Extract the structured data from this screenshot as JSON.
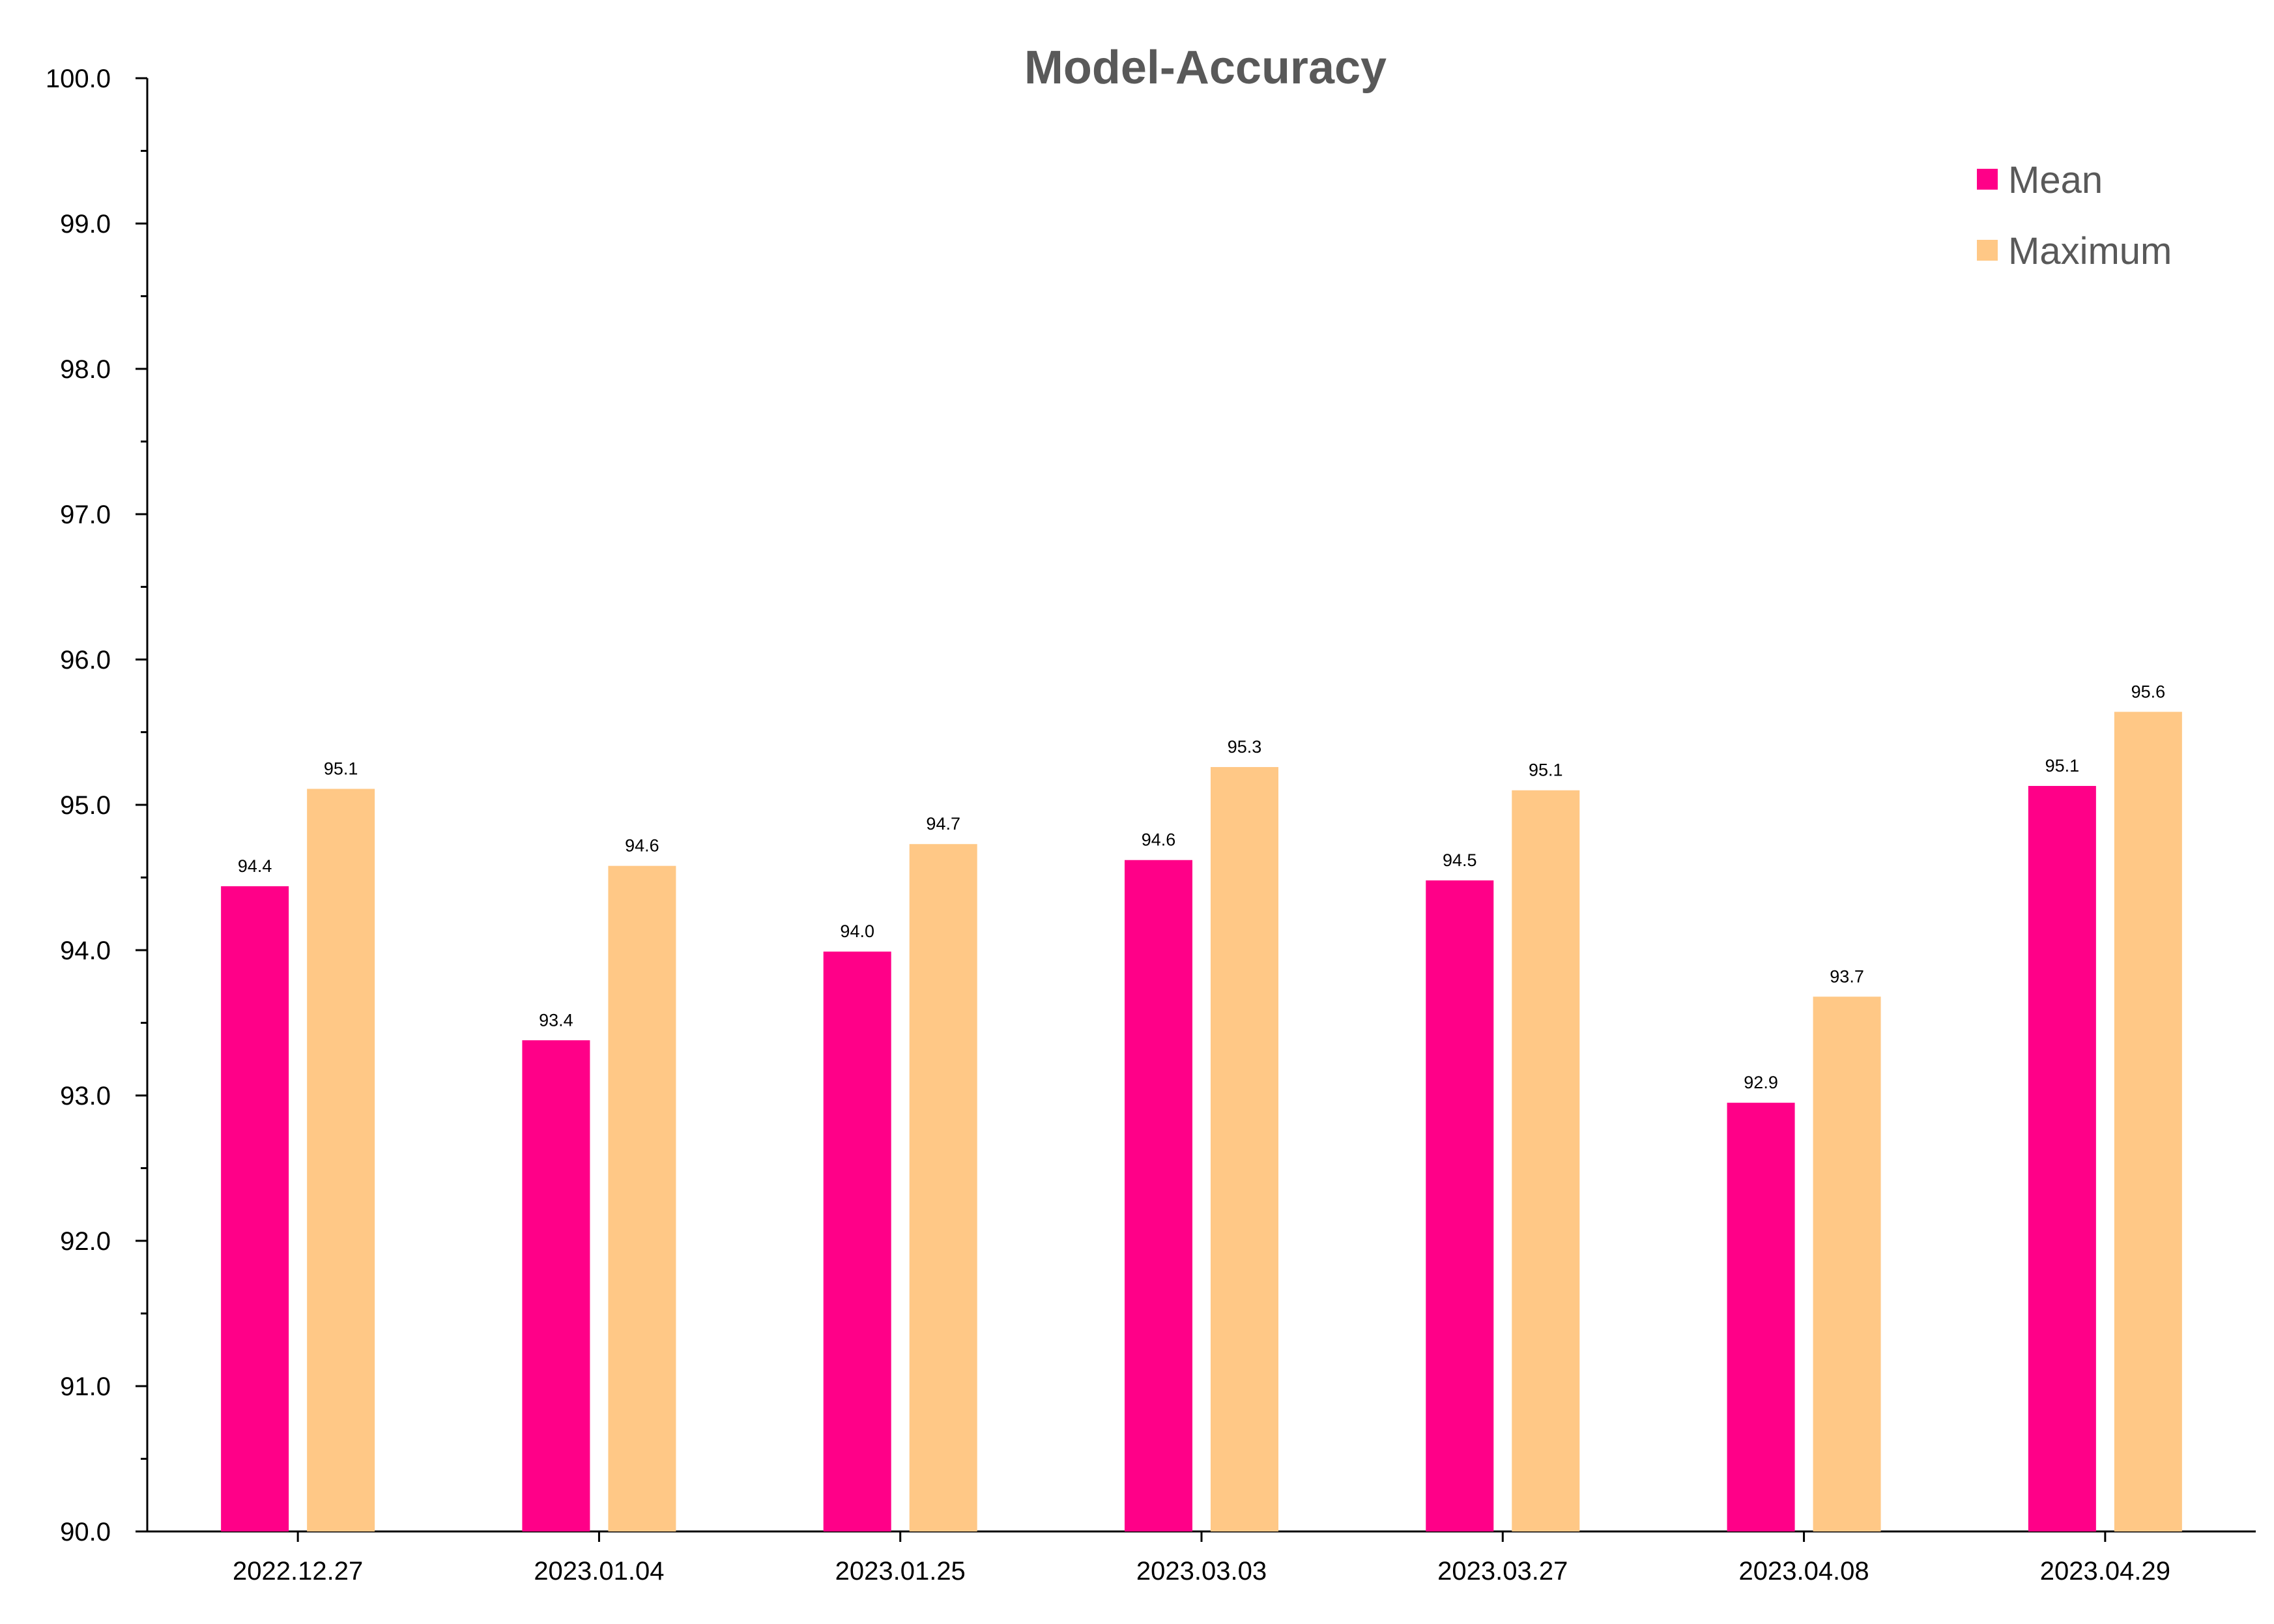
{
  "chart_data": {
    "type": "bar",
    "title": "Model-Accuracy",
    "xlabel": "",
    "ylabel": "",
    "ylim": [
      90.0,
      100.0
    ],
    "y_major_step": 1.0,
    "y_minor_step": 0.5,
    "grid": false,
    "legend_position": "top-right",
    "categories": [
      "2022.12.27",
      "2023.01.04",
      "2023.01.25",
      "2023.03.03",
      "2023.03.27",
      "2023.04.08",
      "2023.04.29"
    ],
    "series": [
      {
        "name": "Mean",
        "color": "#ff0088",
        "values": [
          94.44,
          93.38,
          93.99,
          94.62,
          94.48,
          92.95,
          95.13
        ],
        "labels": [
          "94.4",
          "93.4",
          "94.0",
          "94.6",
          "94.5",
          "92.9",
          "95.1"
        ]
      },
      {
        "name": "Maximum",
        "color": "#ffc886",
        "values": [
          95.11,
          94.58,
          94.73,
          95.26,
          95.1,
          93.68,
          95.64
        ],
        "labels": [
          "95.1",
          "94.6",
          "94.7",
          "95.3",
          "95.1",
          "93.7",
          "95.6"
        ]
      }
    ]
  }
}
